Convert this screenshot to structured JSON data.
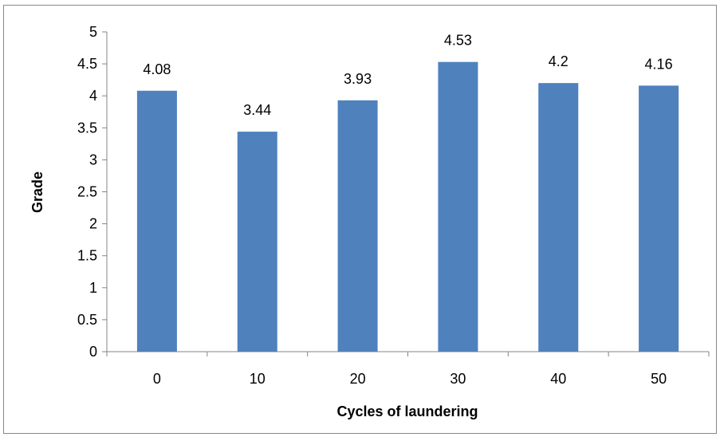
{
  "chart_data": {
    "type": "bar",
    "categories": [
      "0",
      "10",
      "20",
      "30",
      "40",
      "50"
    ],
    "values": [
      4.08,
      3.44,
      3.93,
      4.53,
      4.2,
      4.16
    ],
    "value_labels": [
      "4.08",
      "3.44",
      "3.93",
      "4.53",
      "4.2",
      "4.16"
    ],
    "title": "",
    "xlabel": "Cycles of laundering",
    "ylabel": "Grade",
    "ylim": [
      0,
      5
    ],
    "y_ticks": [
      "0",
      "0.5",
      "1",
      "1.5",
      "2",
      "2.5",
      "3",
      "3.5",
      "4",
      "4.5",
      "5"
    ],
    "grid": false,
    "legend": "none",
    "bar_color": "#4f81bd"
  }
}
